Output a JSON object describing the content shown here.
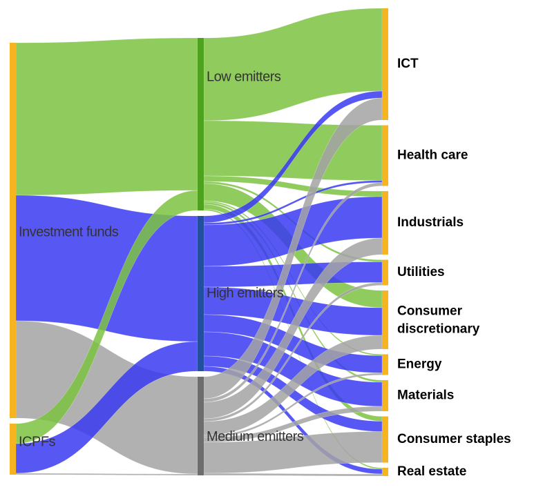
{
  "chart_data": {
    "type": "sankey",
    "nodes": [
      {
        "name": "Investment funds",
        "color": "#f5b420"
      },
      {
        "name": "ICPFs",
        "color": "#f5b420"
      },
      {
        "name": "Low emitters",
        "color": "#4fa21e"
      },
      {
        "name": "High emitters",
        "color": "#22509e"
      },
      {
        "name": "Medium emitters",
        "color": "#6d6d6d"
      },
      {
        "name": "ICT",
        "color": "#f5b420"
      },
      {
        "name": "Health care",
        "color": "#f5b420"
      },
      {
        "name": "Industrials",
        "color": "#f5b420"
      },
      {
        "name": "Utilities",
        "color": "#f5b420"
      },
      {
        "name": "Consumer discretionary",
        "color": "#f5b420"
      },
      {
        "name": "Energy",
        "color": "#f5b420"
      },
      {
        "name": "Materials",
        "color": "#f5b420"
      },
      {
        "name": "Consumer staples",
        "color": "#f5b420"
      },
      {
        "name": "Real estate",
        "color": "#f5b420"
      }
    ],
    "links": [
      {
        "source": 0,
        "target": 2,
        "value": 221,
        "color": "#7cc242"
      },
      {
        "source": 0,
        "target": 3,
        "value": 182,
        "color": "#3a3af2"
      },
      {
        "source": 0,
        "target": 4,
        "value": 141,
        "color": "#a3a3a3"
      },
      {
        "source": 1,
        "target": 2,
        "value": 29,
        "color": "#7cc242"
      },
      {
        "source": 1,
        "target": 3,
        "value": 43,
        "color": "#3a3af2"
      },
      {
        "source": 1,
        "target": 4,
        "value": 2,
        "color": "#a3a3a3"
      },
      {
        "source": 2,
        "target": 5,
        "value": 120,
        "color": "#7cc242"
      },
      {
        "source": 2,
        "target": 6,
        "value": 80,
        "color": "#7cc242"
      },
      {
        "source": 2,
        "target": 7,
        "value": 8,
        "color": "#7cc242"
      },
      {
        "source": 2,
        "target": 8,
        "value": 3,
        "color": "#7cc242"
      },
      {
        "source": 2,
        "target": 9,
        "value": 25,
        "color": "#7cc242"
      },
      {
        "source": 2,
        "target": 10,
        "value": 2,
        "color": "#7cc242"
      },
      {
        "source": 2,
        "target": 11,
        "value": 3,
        "color": "#7cc242"
      },
      {
        "source": 2,
        "target": 12,
        "value": 7,
        "color": "#7cc242"
      },
      {
        "source": 2,
        "target": 13,
        "value": 2,
        "color": "#7cc242"
      },
      {
        "source": 3,
        "target": 5,
        "value": 10,
        "color": "#3a3af2"
      },
      {
        "source": 3,
        "target": 6,
        "value": 3,
        "color": "#3a3af2"
      },
      {
        "source": 3,
        "target": 7,
        "value": 60,
        "color": "#3a3af2"
      },
      {
        "source": 3,
        "target": 8,
        "value": 30,
        "color": "#3a3af2"
      },
      {
        "source": 3,
        "target": 9,
        "value": 40,
        "color": "#3a3af2"
      },
      {
        "source": 3,
        "target": 10,
        "value": 25,
        "color": "#3a3af2"
      },
      {
        "source": 3,
        "target": 11,
        "value": 35,
        "color": "#3a3af2"
      },
      {
        "source": 3,
        "target": 12,
        "value": 15,
        "color": "#3a3af2"
      },
      {
        "source": 3,
        "target": 13,
        "value": 7,
        "color": "#3a3af2"
      },
      {
        "source": 4,
        "target": 5,
        "value": 32,
        "color": "#a3a3a3"
      },
      {
        "source": 4,
        "target": 6,
        "value": 5,
        "color": "#a3a3a3"
      },
      {
        "source": 4,
        "target": 7,
        "value": 24,
        "color": "#a3a3a3"
      },
      {
        "source": 4,
        "target": 8,
        "value": 4,
        "color": "#a3a3a3"
      },
      {
        "source": 4,
        "target": 9,
        "value": 20,
        "color": "#a3a3a3"
      },
      {
        "source": 4,
        "target": 10,
        "value": 3,
        "color": "#a3a3a3"
      },
      {
        "source": 4,
        "target": 11,
        "value": 7,
        "color": "#a3a3a3"
      },
      {
        "source": 4,
        "target": 12,
        "value": 45,
        "color": "#a3a3a3"
      },
      {
        "source": 4,
        "target": 13,
        "value": 3,
        "color": "#a3a3a3"
      }
    ]
  }
}
